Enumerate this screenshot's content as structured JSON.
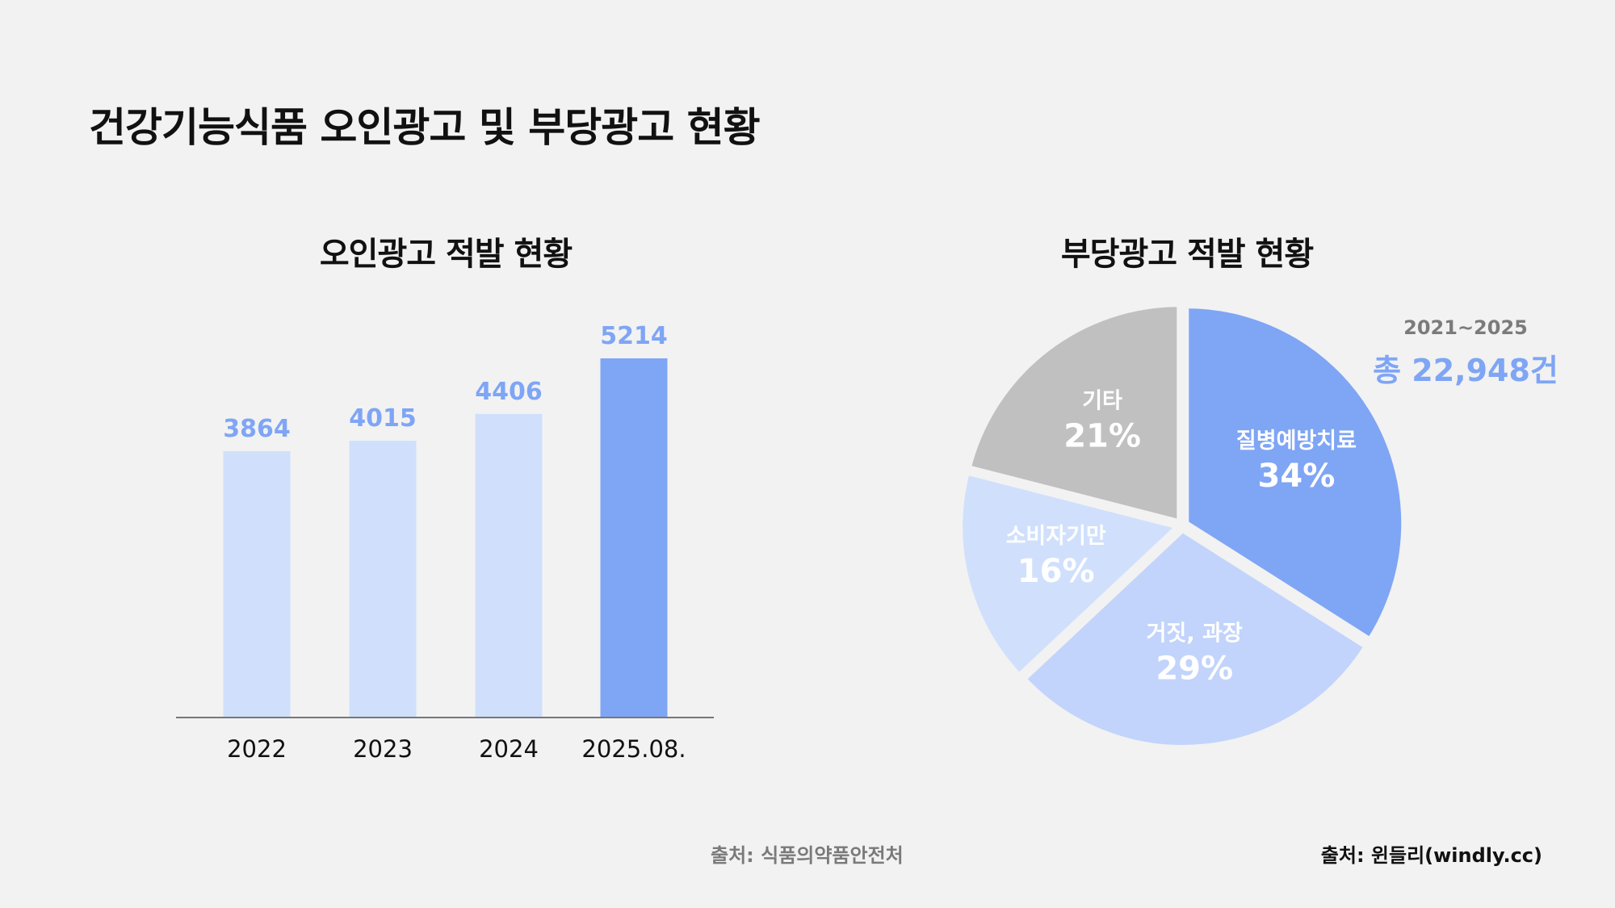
{
  "title": "건강기능식품 오인광고 및 부당광고 현황",
  "sources": {
    "left": "출처: 식품의약품안전처",
    "right": "출처: 윈들리(windly.cc)"
  },
  "summary": {
    "period": "2021~2025",
    "total": "총 22,948건"
  },
  "chart_data": [
    {
      "type": "bar",
      "title": "오인광고 적발 현황",
      "categories": [
        "2022",
        "2023",
        "2024",
        "2025.08."
      ],
      "values": [
        3864,
        4015,
        4406,
        5214
      ],
      "highlight_index": 3,
      "colors": {
        "normal": "#d0e0fc",
        "highlight": "#7fa5f5",
        "label": "#7fa5f5"
      },
      "ylim": [
        0,
        5800
      ],
      "grid": false
    },
    {
      "type": "pie",
      "title": "부당광고 적발 현황",
      "slices": [
        {
          "label": "질병예방치료",
          "value": 34,
          "display": "34%",
          "color": "#7fa5f5"
        },
        {
          "label": "거짓, 과장",
          "value": 29,
          "display": "29%",
          "color": "#c2d4fb"
        },
        {
          "label": "소비자기만",
          "value": 16,
          "display": "16%",
          "color": "#d0e0fc"
        },
        {
          "label": "기타",
          "value": 21,
          "display": "21%",
          "color": "#c0c0c0"
        }
      ]
    }
  ]
}
